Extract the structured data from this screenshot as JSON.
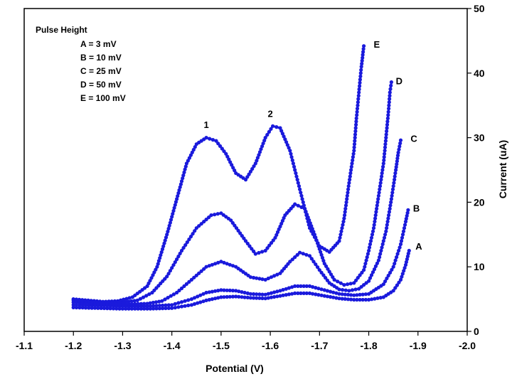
{
  "chart_data": {
    "type": "scatter",
    "xlabel": "Potential (V)",
    "ylabel": "Current (uA)",
    "xlim": [
      -1.1,
      -2.0
    ],
    "ylim": [
      0,
      50
    ],
    "x_ticks": [
      "-1.1",
      "-1.2",
      "-1.3",
      "-1.4",
      "-1.5",
      "-1.6",
      "-1.7",
      "-1.8",
      "-1.9",
      "-2.0"
    ],
    "y_ticks": [
      "0",
      "10",
      "20",
      "30",
      "40",
      "50"
    ],
    "marker_color": "#1a1adc",
    "legend_title": "Pulse Height",
    "legend_items": [
      "A = 3 mV",
      "B = 10 mV",
      "C = 25 mV",
      "D = 50 mV",
      "E = 100 mV"
    ],
    "peak_labels": [
      {
        "label": "1",
        "x": -1.47,
        "y": 31.5
      },
      {
        "label": "2",
        "x": -1.6,
        "y": 33.2
      }
    ],
    "series": [
      {
        "name": "A",
        "end_label": "A",
        "label_at": [
          -1.895,
          13.2
        ],
        "points": [
          [
            -1.2,
            3.7
          ],
          [
            -1.25,
            3.6
          ],
          [
            -1.3,
            3.5
          ],
          [
            -1.35,
            3.5
          ],
          [
            -1.4,
            3.6
          ],
          [
            -1.44,
            4.1
          ],
          [
            -1.47,
            4.8
          ],
          [
            -1.5,
            5.3
          ],
          [
            -1.53,
            5.4
          ],
          [
            -1.56,
            5.2
          ],
          [
            -1.59,
            5.1
          ],
          [
            -1.62,
            5.5
          ],
          [
            -1.65,
            5.9
          ],
          [
            -1.68,
            5.9
          ],
          [
            -1.71,
            5.5
          ],
          [
            -1.74,
            5.1
          ],
          [
            -1.77,
            4.9
          ],
          [
            -1.8,
            4.9
          ],
          [
            -1.83,
            5.3
          ],
          [
            -1.85,
            6.3
          ],
          [
            -1.865,
            8.0
          ],
          [
            -1.875,
            10.3
          ],
          [
            -1.882,
            12.5
          ]
        ]
      },
      {
        "name": "B",
        "end_label": "B",
        "label_at": [
          -1.89,
          19.1
        ],
        "points": [
          [
            -1.2,
            4.1
          ],
          [
            -1.25,
            4.0
          ],
          [
            -1.3,
            3.9
          ],
          [
            -1.35,
            3.9
          ],
          [
            -1.4,
            4.1
          ],
          [
            -1.44,
            5.0
          ],
          [
            -1.47,
            6.0
          ],
          [
            -1.5,
            6.4
          ],
          [
            -1.53,
            6.3
          ],
          [
            -1.56,
            5.8
          ],
          [
            -1.59,
            5.7
          ],
          [
            -1.62,
            6.3
          ],
          [
            -1.65,
            7.0
          ],
          [
            -1.68,
            7.0
          ],
          [
            -1.71,
            6.4
          ],
          [
            -1.74,
            5.8
          ],
          [
            -1.77,
            5.6
          ],
          [
            -1.8,
            5.8
          ],
          [
            -1.83,
            7.3
          ],
          [
            -1.85,
            10.0
          ],
          [
            -1.865,
            13.5
          ],
          [
            -1.875,
            17.0
          ],
          [
            -1.88,
            18.8
          ]
        ]
      },
      {
        "name": "C",
        "end_label": "C",
        "label_at": [
          -1.885,
          29.9
        ],
        "points": [
          [
            -1.2,
            4.5
          ],
          [
            -1.25,
            4.3
          ],
          [
            -1.3,
            4.2
          ],
          [
            -1.35,
            4.3
          ],
          [
            -1.38,
            4.7
          ],
          [
            -1.41,
            6.0
          ],
          [
            -1.44,
            8.0
          ],
          [
            -1.47,
            10.0
          ],
          [
            -1.5,
            10.8
          ],
          [
            -1.53,
            10.0
          ],
          [
            -1.56,
            8.4
          ],
          [
            -1.59,
            8.0
          ],
          [
            -1.62,
            9.0
          ],
          [
            -1.64,
            10.8
          ],
          [
            -1.66,
            12.2
          ],
          [
            -1.68,
            11.7
          ],
          [
            -1.7,
            9.5
          ],
          [
            -1.72,
            7.5
          ],
          [
            -1.74,
            6.5
          ],
          [
            -1.76,
            6.3
          ],
          [
            -1.78,
            6.6
          ],
          [
            -1.8,
            7.8
          ],
          [
            -1.82,
            11.0
          ],
          [
            -1.835,
            15.5
          ],
          [
            -1.845,
            20.0
          ],
          [
            -1.855,
            25.0
          ],
          [
            -1.86,
            27.7
          ],
          [
            -1.865,
            29.6
          ]
        ]
      },
      {
        "name": "D",
        "end_label": "D",
        "label_at": [
          -1.855,
          38.8
        ],
        "points": [
          [
            -1.2,
            4.8
          ],
          [
            -1.25,
            4.5
          ],
          [
            -1.3,
            4.5
          ],
          [
            -1.33,
            4.8
          ],
          [
            -1.36,
            6.0
          ],
          [
            -1.39,
            8.5
          ],
          [
            -1.42,
            12.5
          ],
          [
            -1.45,
            16.0
          ],
          [
            -1.48,
            18.0
          ],
          [
            -1.5,
            18.3
          ],
          [
            -1.52,
            17.2
          ],
          [
            -1.55,
            14.0
          ],
          [
            -1.57,
            12.0
          ],
          [
            -1.59,
            12.5
          ],
          [
            -1.61,
            14.5
          ],
          [
            -1.63,
            18.0
          ],
          [
            -1.65,
            19.7
          ],
          [
            -1.67,
            19.0
          ],
          [
            -1.69,
            15.0
          ],
          [
            -1.71,
            10.5
          ],
          [
            -1.73,
            8.0
          ],
          [
            -1.75,
            7.2
          ],
          [
            -1.77,
            7.5
          ],
          [
            -1.79,
            9.5
          ],
          [
            -1.8,
            12.5
          ],
          [
            -1.81,
            16.0
          ],
          [
            -1.82,
            21.0
          ],
          [
            -1.83,
            26.0
          ],
          [
            -1.835,
            30.0
          ],
          [
            -1.84,
            34.0
          ],
          [
            -1.843,
            37.0
          ],
          [
            -1.846,
            38.6
          ]
        ]
      },
      {
        "name": "E",
        "end_label": "E",
        "label_at": [
          -1.81,
          44.5
        ],
        "points": [
          [
            -1.2,
            5.0
          ],
          [
            -1.23,
            4.8
          ],
          [
            -1.26,
            4.6
          ],
          [
            -1.29,
            4.7
          ],
          [
            -1.32,
            5.3
          ],
          [
            -1.35,
            7.0
          ],
          [
            -1.37,
            10.0
          ],
          [
            -1.39,
            15.0
          ],
          [
            -1.41,
            20.5
          ],
          [
            -1.43,
            26.0
          ],
          [
            -1.45,
            29.0
          ],
          [
            -1.47,
            30.0
          ],
          [
            -1.49,
            29.5
          ],
          [
            -1.51,
            27.5
          ],
          [
            -1.53,
            24.5
          ],
          [
            -1.55,
            23.5
          ],
          [
            -1.57,
            26.0
          ],
          [
            -1.59,
            30.0
          ],
          [
            -1.605,
            31.8
          ],
          [
            -1.62,
            31.5
          ],
          [
            -1.64,
            28.0
          ],
          [
            -1.66,
            22.0
          ],
          [
            -1.68,
            16.0
          ],
          [
            -1.7,
            13.2
          ],
          [
            -1.72,
            12.3
          ],
          [
            -1.74,
            14.0
          ],
          [
            -1.75,
            17.5
          ],
          [
            -1.76,
            23.0
          ],
          [
            -1.77,
            28.0
          ],
          [
            -1.775,
            33.0
          ],
          [
            -1.78,
            37.0
          ],
          [
            -1.785,
            41.0
          ],
          [
            -1.79,
            44.2
          ]
        ]
      }
    ]
  }
}
